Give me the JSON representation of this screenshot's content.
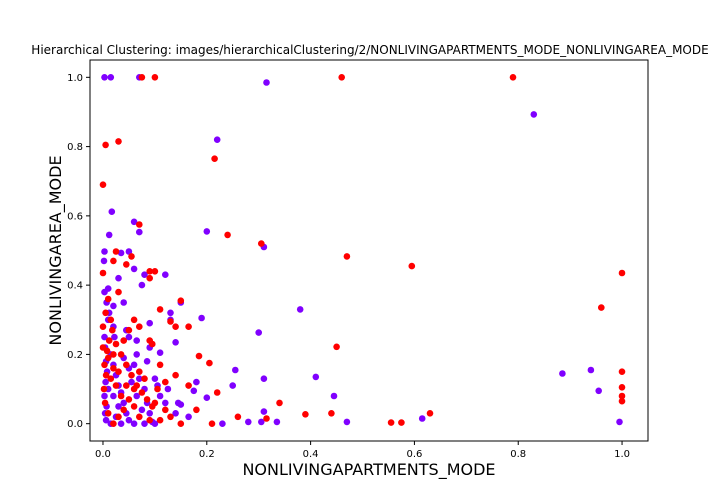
{
  "chart_data": {
    "type": "scatter",
    "title": "Hierarchical Clustering: images/hierarchicalClustering/2/NONLIVINGAPARTMENTS_MODE_NONLIVINGAREA_MODE",
    "xlabel": "NONLIVINGAPARTMENTS_MODE",
    "ylabel": "NONLIVINGAREA_MODE",
    "xlim": [
      -0.025,
      1.05
    ],
    "ylim": [
      -0.05,
      1.05
    ],
    "xticks": [
      0.0,
      0.2,
      0.4,
      0.6,
      0.8,
      1.0
    ],
    "xtick_labels": [
      "0.0",
      "0.2",
      "0.4",
      "0.6",
      "0.8",
      "1.0"
    ],
    "yticks": [
      0.0,
      0.2,
      0.4,
      0.6,
      0.8,
      1.0
    ],
    "ytick_labels": [
      "0.0",
      "0.2",
      "0.4",
      "0.6",
      "0.8",
      "1.0"
    ],
    "grid": false,
    "colors": {
      "cluster_a": "#8000ff",
      "cluster_b": "#ff0000"
    },
    "series": [
      {
        "color": "#8000ff",
        "points": [
          [
            0.003,
            1.0
          ],
          [
            0.015,
            1.0
          ],
          [
            0.07,
            1.0
          ],
          [
            0.315,
            0.985
          ],
          [
            0.83,
            0.893
          ],
          [
            0.22,
            0.82
          ],
          [
            0.017,
            0.612
          ],
          [
            0.012,
            0.545
          ],
          [
            0.07,
            0.553
          ],
          [
            0.2,
            0.555
          ],
          [
            0.31,
            0.51
          ],
          [
            0.06,
            0.583
          ],
          [
            0.05,
            0.497
          ],
          [
            0.003,
            0.497
          ],
          [
            0.035,
            0.493
          ],
          [
            0.002,
            0.47
          ],
          [
            0.075,
            0.4
          ],
          [
            0.06,
            0.447
          ],
          [
            0.08,
            0.43
          ],
          [
            0.12,
            0.43
          ],
          [
            0.01,
            0.39
          ],
          [
            0.03,
            0.42
          ],
          [
            0.003,
            0.38
          ],
          [
            0.007,
            0.35
          ],
          [
            0.02,
            0.34
          ],
          [
            0.04,
            0.35
          ],
          [
            0.09,
            0.29
          ],
          [
            0.15,
            0.35
          ],
          [
            0.13,
            0.32
          ],
          [
            0.38,
            0.33
          ],
          [
            0.13,
            0.3
          ],
          [
            0.19,
            0.305
          ],
          [
            0.3,
            0.263
          ],
          [
            0.11,
            0.205
          ],
          [
            0.01,
            0.3
          ],
          [
            0.02,
            0.28
          ],
          [
            0.05,
            0.25
          ],
          [
            0.065,
            0.2
          ],
          [
            0.09,
            0.22
          ],
          [
            0.14,
            0.235
          ],
          [
            0.255,
            0.155
          ],
          [
            0.31,
            0.13
          ],
          [
            0.41,
            0.135
          ],
          [
            0.445,
            0.08
          ],
          [
            0.47,
            0.005
          ],
          [
            0.885,
            0.145
          ],
          [
            0.94,
            0.155
          ],
          [
            0.955,
            0.095
          ],
          [
            0.995,
            0.005
          ],
          [
            0.615,
            0.015
          ],
          [
            0.2,
            0.075
          ],
          [
            0.25,
            0.11
          ],
          [
            0.28,
            0.005
          ],
          [
            0.23,
            0.0
          ],
          [
            0.31,
            0.035
          ],
          [
            0.305,
            0.005
          ],
          [
            0.335,
            0.005
          ],
          [
            0.18,
            0.12
          ],
          [
            0.175,
            0.095
          ],
          [
            0.15,
            0.055
          ],
          [
            0.14,
            0.03
          ],
          [
            0.1,
            0.13
          ],
          [
            0.11,
            0.08
          ],
          [
            0.12,
            0.06
          ],
          [
            0.003,
            0.25
          ],
          [
            0.004,
            0.22
          ],
          [
            0.006,
            0.18
          ],
          [
            0.008,
            0.15
          ],
          [
            0.005,
            0.12
          ],
          [
            0.01,
            0.1
          ],
          [
            0.003,
            0.08
          ],
          [
            0.007,
            0.05
          ],
          [
            0.004,
            0.03
          ],
          [
            0.006,
            0.01
          ],
          [
            0.015,
            0.2
          ],
          [
            0.02,
            0.17
          ],
          [
            0.025,
            0.14
          ],
          [
            0.03,
            0.11
          ],
          [
            0.035,
            0.09
          ],
          [
            0.04,
            0.06
          ],
          [
            0.045,
            0.03
          ],
          [
            0.05,
            0.01
          ],
          [
            0.02,
            0.08
          ],
          [
            0.03,
            0.05
          ],
          [
            0.06,
            0.17
          ],
          [
            0.07,
            0.13
          ],
          [
            0.08,
            0.1
          ],
          [
            0.085,
            0.06
          ],
          [
            0.09,
            0.03
          ],
          [
            0.095,
            0.005
          ],
          [
            0.055,
            0.12
          ],
          [
            0.065,
            0.08
          ],
          [
            0.075,
            0.04
          ],
          [
            0.04,
            0.19
          ],
          [
            0.05,
            0.16
          ],
          [
            0.015,
            0.0
          ],
          [
            0.025,
            0.02
          ],
          [
            0.035,
            0.0
          ],
          [
            0.06,
            0.0
          ],
          [
            0.08,
            0.0
          ],
          [
            0.1,
            0.0
          ],
          [
            0.012,
            0.32
          ],
          [
            0.022,
            0.25
          ],
          [
            0.045,
            0.27
          ],
          [
            0.065,
            0.24
          ],
          [
            0.085,
            0.18
          ],
          [
            0.105,
            0.11
          ],
          [
            0.125,
            0.1
          ],
          [
            0.145,
            0.06
          ],
          [
            0.165,
            0.02
          ]
        ]
      },
      {
        "color": "#ff0000",
        "points": [
          [
            0.075,
            1.0
          ],
          [
            0.1,
            1.0
          ],
          [
            0.46,
            1.0
          ],
          [
            0.79,
            1.0
          ],
          [
            0.03,
            0.815
          ],
          [
            0.005,
            0.805
          ],
          [
            0.215,
            0.765
          ],
          [
            0.0,
            0.69
          ],
          [
            0.07,
            0.575
          ],
          [
            0.24,
            0.545
          ],
          [
            0.305,
            0.52
          ],
          [
            0.47,
            0.483
          ],
          [
            0.595,
            0.455
          ],
          [
            0.055,
            0.483
          ],
          [
            0.045,
            0.46
          ],
          [
            0.02,
            0.47
          ],
          [
            0.025,
            0.497
          ],
          [
            0.0,
            0.435
          ],
          [
            0.09,
            0.44
          ],
          [
            0.1,
            0.44
          ],
          [
            0.09,
            0.42
          ],
          [
            0.03,
            0.38
          ],
          [
            0.01,
            0.36
          ],
          [
            0.15,
            0.355
          ],
          [
            0.11,
            0.33
          ],
          [
            0.13,
            0.295
          ],
          [
            0.06,
            0.3
          ],
          [
            0.07,
            0.28
          ],
          [
            0.14,
            0.28
          ],
          [
            0.165,
            0.28
          ],
          [
            0.09,
            0.24
          ],
          [
            0.095,
            0.23
          ],
          [
            0.05,
            0.27
          ],
          [
            0.04,
            0.24
          ],
          [
            0.02,
            0.2
          ],
          [
            0.185,
            0.195
          ],
          [
            0.205,
            0.175
          ],
          [
            0.45,
            0.222
          ],
          [
            0.96,
            0.335
          ],
          [
            1.0,
            0.435
          ],
          [
            1.0,
            0.15
          ],
          [
            1.0,
            0.105
          ],
          [
            1.0,
            0.08
          ],
          [
            1.0,
            0.065
          ],
          [
            0.63,
            0.03
          ],
          [
            0.555,
            0.003
          ],
          [
            0.575,
            0.003
          ],
          [
            0.44,
            0.03
          ],
          [
            0.39,
            0.027
          ],
          [
            0.34,
            0.06
          ],
          [
            0.315,
            0.015
          ],
          [
            0.26,
            0.02
          ],
          [
            0.21,
            0.0
          ],
          [
            0.22,
            0.09
          ],
          [
            0.165,
            0.11
          ],
          [
            0.12,
            0.04
          ],
          [
            0.13,
            0.02
          ],
          [
            0.1,
            0.06
          ],
          [
            0.105,
            0.1
          ],
          [
            0.08,
            0.13
          ],
          [
            0.07,
            0.15
          ],
          [
            0.06,
            0.1
          ],
          [
            0.05,
            0.07
          ],
          [
            0.04,
            0.04
          ],
          [
            0.03,
            0.02
          ],
          [
            0.02,
            0.0
          ],
          [
            0.01,
            0.03
          ],
          [
            0.004,
            0.06
          ],
          [
            0.002,
            0.1
          ],
          [
            0.006,
            0.14
          ],
          [
            0.003,
            0.17
          ],
          [
            0.008,
            0.21
          ],
          [
            0.012,
            0.24
          ],
          [
            0.018,
            0.27
          ],
          [
            0.025,
            0.23
          ],
          [
            0.035,
            0.2
          ],
          [
            0.045,
            0.17
          ],
          [
            0.055,
            0.14
          ],
          [
            0.065,
            0.11
          ],
          [
            0.075,
            0.09
          ],
          [
            0.085,
            0.07
          ],
          [
            0.095,
            0.05
          ],
          [
            0.015,
            0.13
          ],
          [
            0.025,
            0.11
          ],
          [
            0.035,
            0.08
          ],
          [
            0.045,
            0.11
          ],
          [
            0.03,
            0.15
          ],
          [
            0.02,
            0.16
          ],
          [
            0.01,
            0.19
          ],
          [
            0.0,
            0.22
          ],
          [
            0.0,
            0.28
          ],
          [
            0.005,
            0.32
          ],
          [
            0.015,
            0.3
          ],
          [
            0.07,
            0.02
          ],
          [
            0.09,
            0.01
          ],
          [
            0.11,
            0.01
          ],
          [
            0.06,
            0.05
          ],
          [
            0.15,
            0.0
          ],
          [
            0.18,
            0.04
          ],
          [
            0.14,
            0.14
          ],
          [
            0.12,
            0.12
          ],
          [
            0.11,
            0.17
          ]
        ]
      }
    ]
  }
}
